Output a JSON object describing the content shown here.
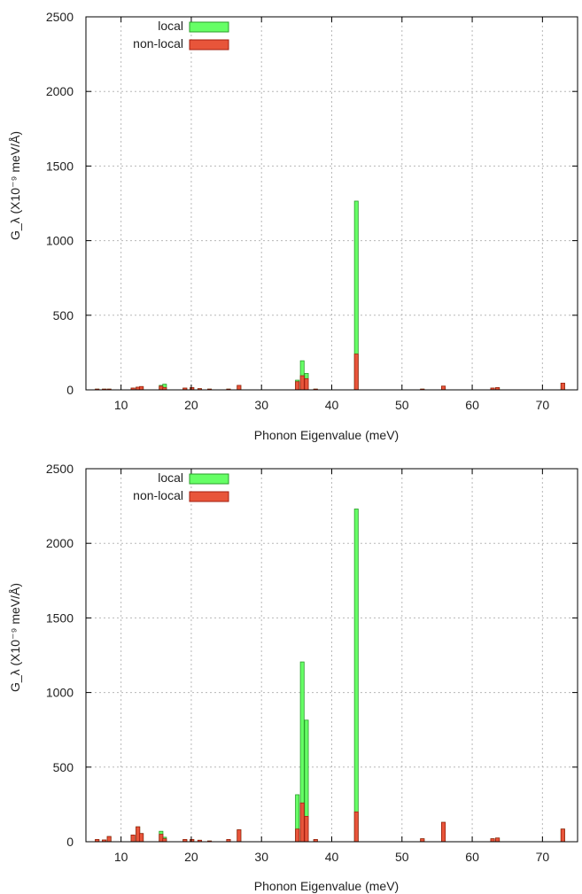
{
  "colors": {
    "local": "#66ff66",
    "local_edge": "#2a9d2a",
    "nonlocal": "#e8553a",
    "nonlocal_edge": "#a31f10"
  },
  "legend": {
    "local": "local",
    "nonlocal": "non-local"
  },
  "chart_data": [
    {
      "type": "bar",
      "xlabel": "Phonon Eigenvalue (meV)",
      "ylabel": "G_λ (X10⁻⁹ meV/Å)",
      "xlim": [
        5,
        75
      ],
      "ylim": [
        0,
        2500
      ],
      "xticks": [
        10,
        20,
        30,
        40,
        50,
        60,
        70
      ],
      "yticks": [
        0,
        500,
        1000,
        1500,
        2000,
        2500
      ],
      "grid": true,
      "legend_position": "top-left",
      "series": [
        {
          "name": "local",
          "x": [
            6.6,
            7.6,
            8.3,
            11.7,
            12.4,
            12.9,
            15.7,
            16.2,
            19.1,
            20.1,
            21.2,
            22.6,
            25.3,
            26.8,
            35.1,
            35.8,
            36.4,
            37.7,
            43.5,
            52.9,
            55.9,
            62.9,
            63.6,
            72.9
          ],
          "values": [
            5,
            5,
            5,
            12,
            18,
            22,
            30,
            38,
            12,
            15,
            8,
            5,
            5,
            30,
            65,
            195,
            110,
            5,
            1265,
            5,
            25,
            12,
            15,
            45
          ]
        },
        {
          "name": "non-local",
          "x": [
            6.6,
            7.6,
            8.3,
            11.7,
            12.4,
            12.9,
            15.7,
            16.2,
            19.1,
            20.1,
            21.2,
            22.6,
            25.3,
            26.8,
            35.1,
            35.8,
            36.4,
            37.7,
            43.5,
            52.9,
            55.9,
            62.9,
            63.6,
            72.9
          ],
          "values": [
            5,
            5,
            5,
            12,
            18,
            22,
            25,
            15,
            12,
            15,
            8,
            5,
            5,
            30,
            55,
            95,
            75,
            5,
            240,
            5,
            25,
            12,
            15,
            45
          ]
        }
      ]
    },
    {
      "type": "bar",
      "xlabel": "Phonon Eigenvalue (meV)",
      "ylabel": "G_λ (X10⁻⁹ meV/Å)",
      "xlim": [
        5,
        75
      ],
      "ylim": [
        0,
        2500
      ],
      "xticks": [
        10,
        20,
        30,
        40,
        50,
        60,
        70
      ],
      "yticks": [
        0,
        500,
        1000,
        1500,
        2000,
        2500
      ],
      "grid": true,
      "legend_position": "top-left",
      "series": [
        {
          "name": "local",
          "x": [
            6.6,
            7.6,
            8.3,
            11.7,
            12.4,
            12.9,
            15.7,
            16.2,
            19.1,
            20.1,
            21.2,
            22.6,
            25.3,
            26.8,
            35.1,
            35.8,
            36.4,
            37.7,
            43.5,
            52.9,
            55.9,
            62.9,
            63.6,
            72.9
          ],
          "values": [
            15,
            12,
            35,
            45,
            100,
            55,
            70,
            30,
            15,
            15,
            10,
            5,
            15,
            80,
            315,
            1205,
            815,
            15,
            2230,
            20,
            130,
            20,
            25,
            85
          ]
        },
        {
          "name": "non-local",
          "x": [
            6.6,
            7.6,
            8.3,
            11.7,
            12.4,
            12.9,
            15.7,
            16.2,
            19.1,
            20.1,
            21.2,
            22.6,
            25.3,
            26.8,
            35.1,
            35.8,
            36.4,
            37.7,
            43.5,
            52.9,
            55.9,
            62.9,
            63.6,
            72.9
          ],
          "values": [
            15,
            12,
            35,
            45,
            100,
            55,
            50,
            20,
            15,
            15,
            10,
            5,
            15,
            80,
            85,
            260,
            170,
            15,
            200,
            20,
            130,
            20,
            25,
            85
          ]
        }
      ]
    }
  ]
}
